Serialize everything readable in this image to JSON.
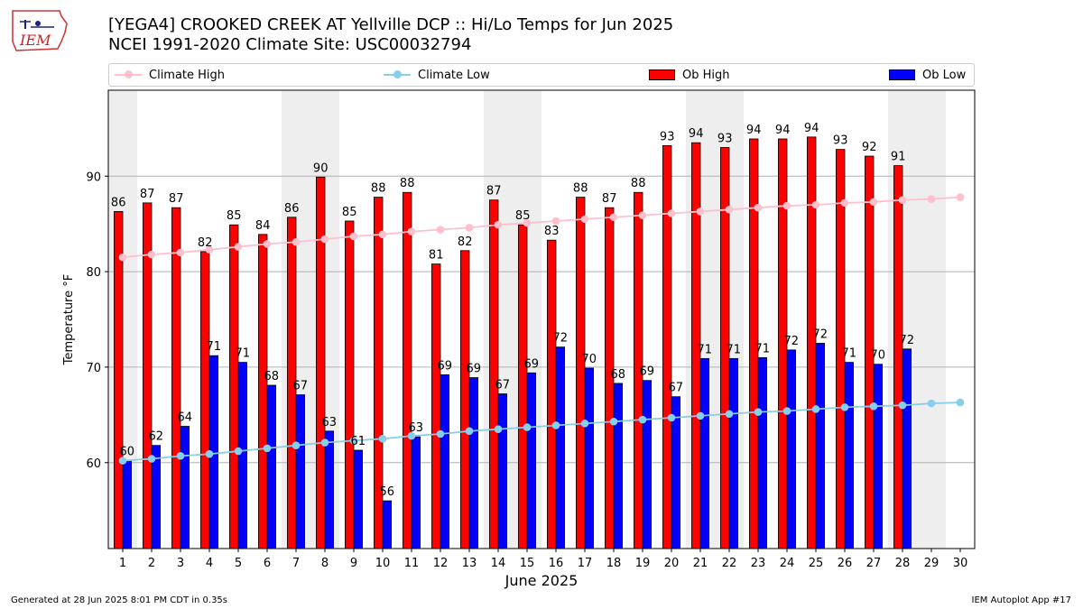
{
  "title_line1": "[YEGA4] CROOKED CREEK  AT Yellville DCP :: Hi/Lo Temps for Jun 2025",
  "title_line2": "NCEI 1991-2020 Climate Site: USC00032794",
  "logo_text": "IEM",
  "footer_left": "Generated at 28 Jun 2025 8:01 PM CDT in 0.35s",
  "footer_right": "IEM Autoplot App #17",
  "colors": {
    "ob_high": "#ff0000",
    "ob_low": "#0000ff",
    "climate_high": "#ffc0cb",
    "climate_low": "#87ceeb",
    "weekend_shade": "#eeeeee",
    "grid": "#b0b0b0"
  },
  "chart_data": {
    "type": "bar",
    "xlabel": "June 2025",
    "ylabel": "Temperature °F",
    "ylim": [
      51,
      99
    ],
    "yticks": [
      60,
      70,
      80,
      90
    ],
    "grid": "horizontal",
    "legend_position": "top",
    "categories": [
      1,
      2,
      3,
      4,
      5,
      6,
      7,
      8,
      9,
      10,
      11,
      12,
      13,
      14,
      15,
      16,
      17,
      18,
      19,
      20,
      21,
      22,
      23,
      24,
      25,
      26,
      27,
      28,
      29,
      30
    ],
    "shaded_days": [
      1,
      7,
      8,
      14,
      15,
      21,
      22,
      28,
      29
    ],
    "series": [
      {
        "name": "Climate High",
        "kind": "line",
        "values": [
          81.5,
          81.8,
          82.0,
          82.3,
          82.6,
          82.9,
          83.1,
          83.4,
          83.7,
          83.9,
          84.2,
          84.4,
          84.6,
          84.9,
          85.1,
          85.3,
          85.5,
          85.7,
          85.9,
          86.1,
          86.3,
          86.5,
          86.7,
          86.9,
          87.0,
          87.2,
          87.3,
          87.5,
          87.6,
          87.8
        ]
      },
      {
        "name": "Climate Low",
        "kind": "line",
        "values": [
          60.2,
          60.4,
          60.7,
          60.9,
          61.2,
          61.5,
          61.8,
          62.1,
          62.3,
          62.5,
          62.8,
          63.0,
          63.3,
          63.5,
          63.7,
          63.9,
          64.1,
          64.3,
          64.5,
          64.7,
          64.9,
          65.1,
          65.3,
          65.4,
          65.6,
          65.8,
          65.9,
          66.0,
          66.2,
          66.3
        ]
      },
      {
        "name": "Ob High",
        "kind": "bar",
        "values": [
          86.3,
          87.2,
          86.7,
          82.1,
          84.9,
          83.9,
          85.7,
          89.9,
          85.3,
          87.8,
          88.3,
          80.8,
          82.2,
          87.5,
          84.9,
          83.3,
          87.8,
          86.7,
          88.3,
          93.2,
          93.5,
          93.0,
          93.9,
          93.9,
          94.1,
          92.8,
          92.1,
          91.1,
          null,
          null
        ],
        "labels": [
          "86",
          "87",
          "87",
          "82",
          "85",
          "84",
          "86",
          "90",
          "85",
          "88",
          "88",
          "81",
          "82",
          "87",
          "85",
          "83",
          "88",
          "87",
          "88",
          "93",
          "94",
          "93",
          "94",
          "94",
          "94",
          "93",
          "92",
          "91",
          null,
          null
        ]
      },
      {
        "name": "Ob Low",
        "kind": "bar",
        "values": [
          60.2,
          61.8,
          63.8,
          71.2,
          70.5,
          68.1,
          67.1,
          63.3,
          61.3,
          56.0,
          62.7,
          69.2,
          68.9,
          67.2,
          69.4,
          72.1,
          69.9,
          68.3,
          68.6,
          66.9,
          70.9,
          70.9,
          71.0,
          71.8,
          72.5,
          70.5,
          70.3,
          71.9,
          null,
          null
        ],
        "labels": [
          "60",
          "62",
          "64",
          "71",
          "71",
          "68",
          "67",
          "63",
          "61",
          "56",
          "63",
          "69",
          "69",
          "67",
          "69",
          "72",
          "70",
          "68",
          "69",
          "67",
          "71",
          "71",
          "71",
          "72",
          "72",
          "71",
          "70",
          "72",
          null,
          null
        ]
      }
    ]
  }
}
